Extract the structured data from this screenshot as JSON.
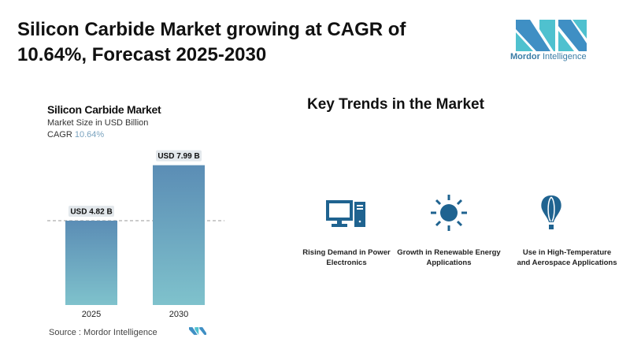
{
  "header": {
    "title": "Silicon Carbide Market growing at CAGR of 10.64%, Forecast 2025-2030",
    "logo": {
      "text_bold": "Mordor",
      "text_regular": " Intelligence"
    }
  },
  "chart_data": {
    "type": "bar",
    "title": "Silicon Carbide Market",
    "subtitle": "Market Size in USD Billion",
    "cagr_label": "CAGR",
    "cagr_value": "10.64%",
    "categories": [
      "2025",
      "2030"
    ],
    "values": [
      4.82,
      7.99
    ],
    "data_labels": [
      "USD 4.82 B",
      "USD 7.99 B"
    ],
    "reference_line": "dashed at 2025 value",
    "colors": {
      "bar_top": "#5b8db5",
      "bar_bottom": "#7fc2cc",
      "label_bg": "#e3e8ec"
    },
    "source_label": "Source :",
    "source": "Mordor Intelligence"
  },
  "trends": {
    "title": "Key Trends in the Market",
    "color": "#1f6390",
    "items": [
      {
        "icon": "desktop-computer-icon",
        "label": "Rising Demand in Power Electronics"
      },
      {
        "icon": "sun-icon",
        "label": "Growth in Renewable Energy Applications"
      },
      {
        "icon": "hot-air-balloon-icon",
        "label": "Use in High-Temperature and Aerospace Applications"
      }
    ]
  }
}
